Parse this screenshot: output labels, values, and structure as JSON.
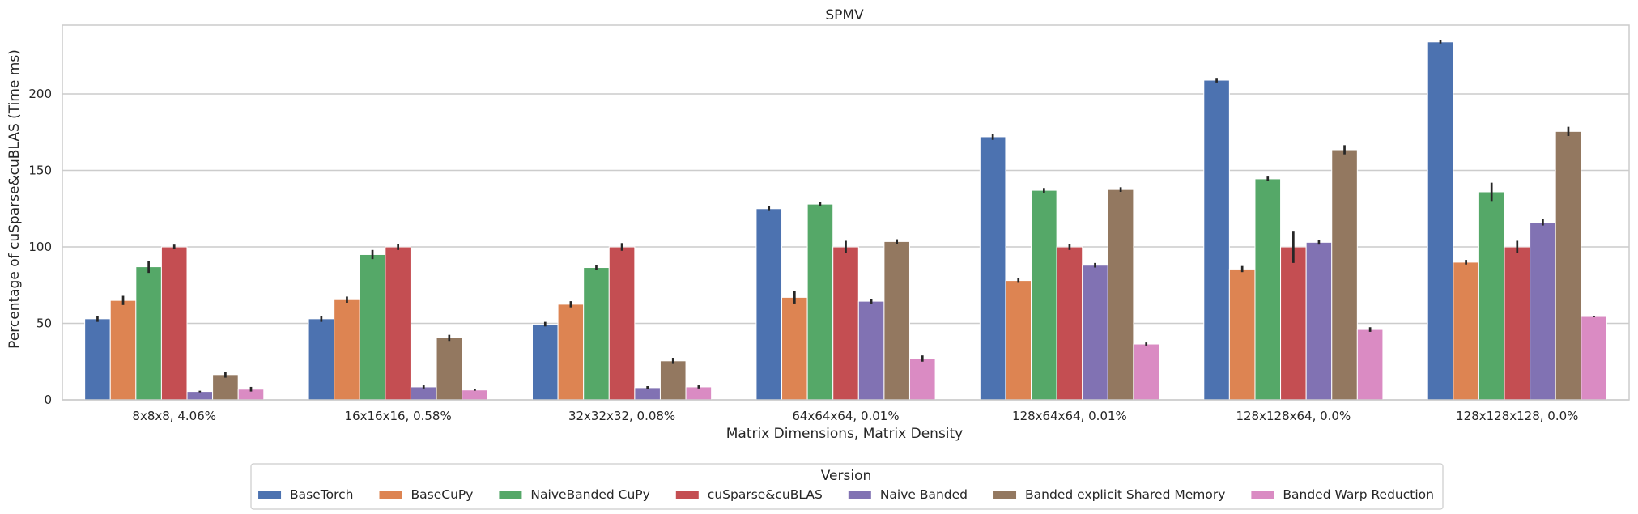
{
  "chart_data": {
    "type": "bar",
    "title": "SPMV",
    "xlabel": "Matrix Dimensions, Matrix Density",
    "ylabel": "Percentage of cuSparse&cuBLAS (Time ms)",
    "ylim": [
      0,
      245
    ],
    "yticks": [
      0,
      50,
      100,
      150,
      200
    ],
    "grid": "horizontal",
    "categories": [
      "8x8x8, 4.06%",
      "16x16x16, 0.58%",
      "32x32x32, 0.08%",
      "64x64x64, 0.01%",
      "128x64x64, 0.01%",
      "128x128x64, 0.0%",
      "128x128x128, 0.0%"
    ],
    "legend": {
      "title": "Version",
      "placement": "bottom-center"
    },
    "series": [
      {
        "name": "BaseTorch",
        "color": "#4c72b0",
        "values": [
          53,
          53,
          49.5,
          125,
          172,
          209,
          234
        ],
        "error": [
          2,
          2,
          1.5,
          1.5,
          2,
          1.5,
          1
        ]
      },
      {
        "name": "BaseCuPy",
        "color": "#dd8452",
        "values": [
          65,
          65.5,
          62.5,
          67,
          78,
          85.5,
          90
        ],
        "error": [
          3,
          2,
          2,
          4,
          1.5,
          2,
          1.5
        ]
      },
      {
        "name": "NaiveBanded CuPy",
        "color": "#55a868",
        "values": [
          87,
          95,
          86.5,
          128,
          137,
          144.5,
          136
        ],
        "error": [
          4,
          3,
          1.5,
          1.5,
          1.5,
          1.5,
          6
        ]
      },
      {
        "name": "cuSparse&cuBLAS",
        "color": "#c44e52",
        "values": [
          100,
          100,
          100,
          100,
          100,
          100,
          100
        ],
        "error": [
          1.5,
          2,
          2.5,
          4,
          2,
          10.5,
          4
        ]
      },
      {
        "name": "Naive Banded",
        "color": "#8172b3",
        "values": [
          5.5,
          8.5,
          8,
          64.5,
          88,
          103,
          116
        ],
        "error": [
          0.5,
          1,
          1,
          1.5,
          1.5,
          1.5,
          2
        ]
      },
      {
        "name": "Banded explicit Shared Memory",
        "color": "#937860",
        "values": [
          16.5,
          40.5,
          25.5,
          103.5,
          137.5,
          163.5,
          175.5
        ],
        "error": [
          2,
          2,
          2,
          1.5,
          1.5,
          3,
          3
        ]
      },
      {
        "name": "Banded Warp Reduction",
        "color": "#da8bc3",
        "values": [
          7,
          6.5,
          8.5,
          27,
          36.5,
          46,
          54.5
        ],
        "error": [
          1.5,
          0.5,
          1,
          2,
          1,
          1.5,
          0.5
        ]
      }
    ]
  }
}
